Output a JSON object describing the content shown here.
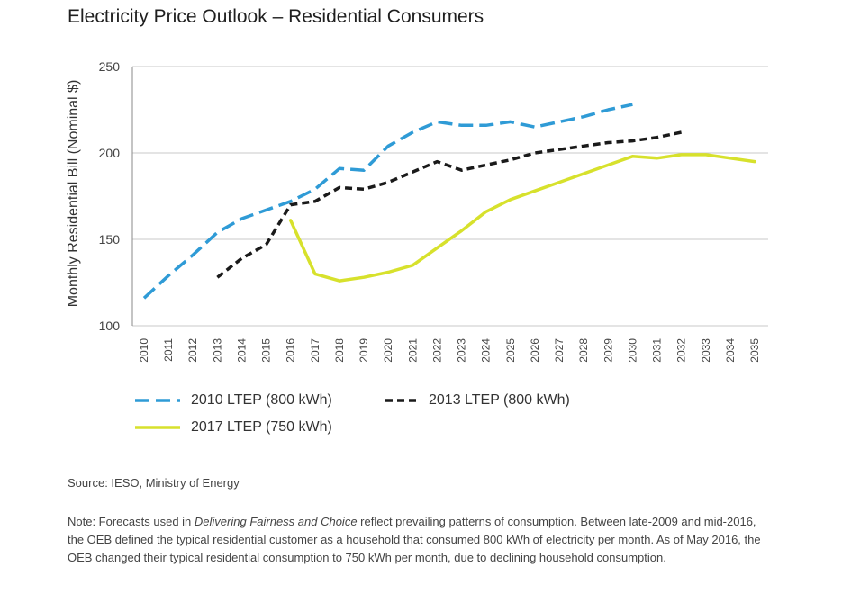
{
  "title": "Electricity Price Outlook – Residential Consumers",
  "source": "Source: IESO, Ministry of Energy",
  "note": {
    "prefix": "Note: Forecasts used in ",
    "emphasis": "Delivering Fairness and Choice",
    "suffix": " reflect prevailing patterns of consumption. Between late-2009 and mid-2016, the OEB defined the typical residential customer as a household that consumed 800 kWh of electricity per month. As of May 2016, the OEB changed their typical residential consumption to 750 kWh per month, due to declining household consumption."
  },
  "chart_data": {
    "type": "line",
    "ylabel": "Monthly Residential Bill (Nominal $)",
    "xlabel": "",
    "ylim": [
      100,
      250
    ],
    "yticks": [
      100,
      150,
      200,
      250
    ],
    "xlim": [
      2010,
      2035
    ],
    "xticks": [
      2010,
      2011,
      2012,
      2013,
      2014,
      2015,
      2016,
      2017,
      2018,
      2019,
      2020,
      2021,
      2022,
      2023,
      2024,
      2025,
      2026,
      2027,
      2028,
      2029,
      2030,
      2031,
      2032,
      2033,
      2034,
      2035
    ],
    "grid": "horizontal",
    "legend_position": "bottom",
    "series": [
      {
        "name": "2010 LTEP (800 kWh)",
        "color": "#2f9bd6",
        "style": "dashed-long",
        "x": [
          2010,
          2011,
          2012,
          2013,
          2014,
          2015,
          2016,
          2017,
          2018,
          2019,
          2020,
          2021,
          2022,
          2023,
          2024,
          2025,
          2026,
          2027,
          2028,
          2029,
          2030
        ],
        "values": [
          116,
          129,
          141,
          154,
          162,
          167,
          172,
          179,
          191,
          190,
          204,
          212,
          218,
          216,
          216,
          218,
          215,
          218,
          221,
          225,
          228
        ]
      },
      {
        "name": "2013 LTEP (800 kWh)",
        "color": "#1a1a1a",
        "style": "dashed-short",
        "x": [
          2013,
          2014,
          2015,
          2016,
          2017,
          2018,
          2019,
          2020,
          2021,
          2022,
          2023,
          2024,
          2025,
          2026,
          2027,
          2028,
          2029,
          2030,
          2031,
          2032
        ],
        "values": [
          128,
          139,
          147,
          170,
          172,
          180,
          179,
          183,
          189,
          195,
          190,
          193,
          196,
          200,
          202,
          204,
          206,
          207,
          209,
          212
        ]
      },
      {
        "name": "2017 LTEP (750 kWh)",
        "color": "#d7e12c",
        "style": "solid",
        "x": [
          2016,
          2017,
          2018,
          2019,
          2020,
          2021,
          2022,
          2023,
          2024,
          2025,
          2026,
          2027,
          2028,
          2029,
          2030,
          2031,
          2032,
          2033,
          2034,
          2035
        ],
        "values": [
          161,
          130,
          126,
          128,
          131,
          135,
          145,
          155,
          166,
          173,
          178,
          183,
          188,
          193,
          198,
          197,
          199,
          199,
          197,
          195
        ]
      }
    ]
  }
}
